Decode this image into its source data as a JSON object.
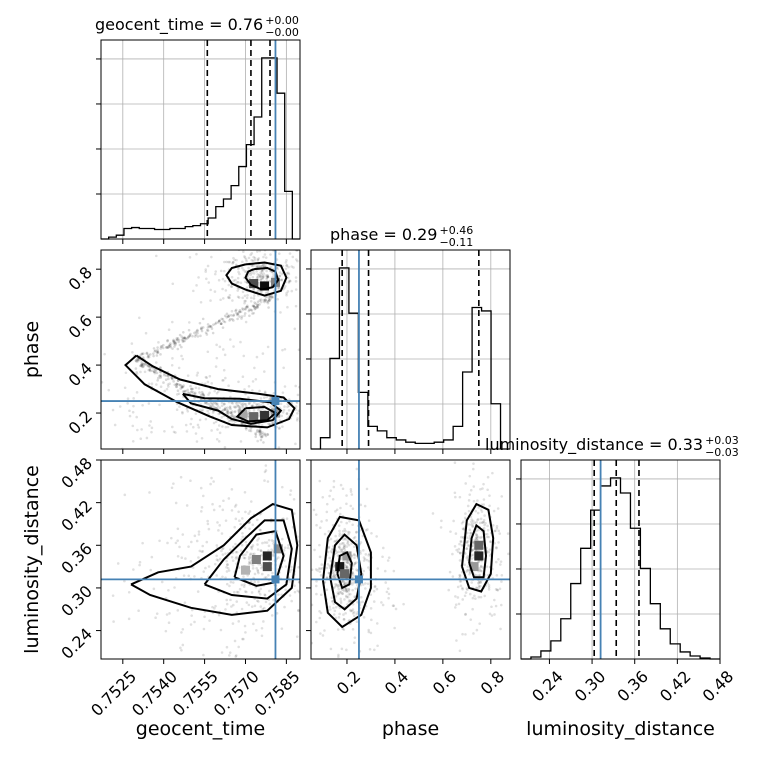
{
  "chart_data": {
    "type": "corner",
    "parameters": [
      {
        "name": "geocent_time",
        "xlabel": "geocent_time",
        "title_text": "geocent_time = 0.76",
        "title_plus": "+0.00",
        "title_minus": "−0.00",
        "range": [
          0.7517,
          0.759
        ],
        "ticks": [
          0.7525,
          0.754,
          0.7555,
          0.757,
          0.7585
        ],
        "tick_labels": [
          "0.7525",
          "0.7540",
          "0.7555",
          "0.7570",
          "0.7585"
        ],
        "truth": 0.7581,
        "quantiles": [
          0.7556,
          0.7572,
          0.7579
        ],
        "hist_edges_range": [
          0.7517,
          0.759
        ],
        "hist_counts": [
          0,
          2,
          4,
          11,
          12,
          11,
          11,
          10,
          10,
          11,
          11,
          13,
          14,
          16,
          22,
          34,
          42,
          56,
          76,
          99,
          128,
          190,
          190,
          153,
          50,
          0
        ]
      },
      {
        "name": "phase",
        "xlabel": "phase",
        "ylabel": "phase",
        "title_text": "phase = 0.29",
        "title_plus": "+0.46",
        "title_minus": "−0.11",
        "range": [
          0.05,
          0.88
        ],
        "ticks": [
          0.2,
          0.4,
          0.6,
          0.8
        ],
        "tick_labels": [
          "0.2",
          "0.4",
          "0.6",
          "0.8"
        ],
        "truth": 0.25,
        "quantiles": [
          0.18,
          0.29,
          0.75
        ],
        "hist_counts": [
          0,
          10,
          80,
          160,
          120,
          50,
          20,
          16,
          10,
          8,
          6,
          5,
          5,
          6,
          8,
          20,
          68,
          125,
          122,
          40,
          0
        ]
      },
      {
        "name": "luminosity_distance",
        "xlabel": "luminosity_distance",
        "ylabel": "luminosity_distance",
        "title_text": "luminosity_distance = 0.33",
        "title_plus": "+0.03",
        "title_minus": "−0.03",
        "range": [
          0.2,
          0.48
        ],
        "ticks": [
          0.24,
          0.3,
          0.36,
          0.42,
          0.48
        ],
        "tick_labels": [
          "0.24",
          "0.30",
          "0.36",
          "0.42",
          "0.48"
        ],
        "truth": 0.312,
        "quantiles": [
          0.303,
          0.334,
          0.366
        ],
        "hist_counts": [
          0,
          2,
          8,
          18,
          40,
          75,
          110,
          148,
          172,
          180,
          165,
          130,
          90,
          55,
          30,
          15,
          7,
          3,
          1,
          0
        ]
      }
    ],
    "pairs": [
      {
        "x": "geocent_time",
        "y": "phase",
        "contour_polylines": [
          [
            [
              0.757,
              0.82
            ],
            [
              0.7577,
              0.828
            ],
            [
              0.7583,
              0.815
            ],
            [
              0.7585,
              0.765
            ],
            [
              0.7583,
              0.71
            ],
            [
              0.7577,
              0.69
            ],
            [
              0.757,
              0.715
            ],
            [
              0.7565,
              0.74
            ],
            [
              0.7563,
              0.775
            ],
            [
              0.7565,
              0.805
            ],
            [
              0.757,
              0.82
            ]
          ],
          [
            [
              0.7573,
              0.8
            ],
            [
              0.7578,
              0.805
            ],
            [
              0.7581,
              0.79
            ],
            [
              0.7582,
              0.755
            ],
            [
              0.758,
              0.725
            ],
            [
              0.7576,
              0.715
            ],
            [
              0.7572,
              0.735
            ],
            [
              0.757,
              0.765
            ],
            [
              0.7571,
              0.79
            ],
            [
              0.7573,
              0.8
            ]
          ],
          [
            [
              0.753,
              0.44
            ],
            [
              0.7536,
              0.395
            ],
            [
              0.7546,
              0.34
            ],
            [
              0.756,
              0.3
            ],
            [
              0.7575,
              0.28
            ],
            [
              0.7584,
              0.265
            ],
            [
              0.7588,
              0.22
            ],
            [
              0.7586,
              0.175
            ],
            [
              0.7578,
              0.14
            ],
            [
              0.7565,
              0.15
            ],
            [
              0.7557,
              0.185
            ],
            [
              0.7545,
              0.245
            ],
            [
              0.7533,
              0.32
            ],
            [
              0.7526,
              0.4
            ],
            [
              0.753,
              0.44
            ]
          ],
          [
            [
              0.7547,
              0.28
            ],
            [
              0.7555,
              0.262
            ],
            [
              0.7568,
              0.26
            ],
            [
              0.7579,
              0.245
            ],
            [
              0.7583,
              0.21
            ],
            [
              0.758,
              0.17
            ],
            [
              0.7572,
              0.155
            ],
            [
              0.7565,
              0.175
            ],
            [
              0.756,
              0.21
            ],
            [
              0.755,
              0.24
            ],
            [
              0.7547,
              0.28
            ]
          ],
          [
            [
              0.757,
              0.22
            ],
            [
              0.7577,
              0.225
            ],
            [
              0.7581,
              0.2
            ],
            [
              0.7578,
              0.17
            ],
            [
              0.7571,
              0.165
            ],
            [
              0.7567,
              0.185
            ],
            [
              0.757,
              0.22
            ]
          ]
        ],
        "dense_cells": [
          [
            0.7577,
            0.73,
            0.95
          ],
          [
            0.7573,
            0.74,
            0.7
          ],
          [
            0.7581,
            0.745,
            0.5
          ],
          [
            0.7577,
            0.19,
            0.8
          ],
          [
            0.7573,
            0.185,
            0.6
          ],
          [
            0.7581,
            0.2,
            0.4
          ],
          [
            0.7569,
            0.195,
            0.35
          ]
        ]
      },
      {
        "x": "geocent_time",
        "y": "luminosity_distance",
        "contour_polylines": [
          [
            [
              0.7528,
              0.305
            ],
            [
              0.7535,
              0.29
            ],
            [
              0.755,
              0.272
            ],
            [
              0.7565,
              0.262
            ],
            [
              0.7578,
              0.268
            ],
            [
              0.7587,
              0.3
            ],
            [
              0.7589,
              0.36
            ],
            [
              0.7587,
              0.41
            ],
            [
              0.758,
              0.418
            ],
            [
              0.7572,
              0.398
            ],
            [
              0.7562,
              0.36
            ],
            [
              0.755,
              0.33
            ],
            [
              0.7538,
              0.322
            ],
            [
              0.7528,
              0.305
            ]
          ],
          [
            [
              0.7555,
              0.305
            ],
            [
              0.7565,
              0.29
            ],
            [
              0.7578,
              0.285
            ],
            [
              0.7585,
              0.305
            ],
            [
              0.7587,
              0.355
            ],
            [
              0.7584,
              0.395
            ],
            [
              0.7577,
              0.395
            ],
            [
              0.757,
              0.37
            ],
            [
              0.7562,
              0.34
            ],
            [
              0.7555,
              0.305
            ]
          ],
          [
            [
              0.7566,
              0.315
            ],
            [
              0.7574,
              0.303
            ],
            [
              0.7581,
              0.308
            ],
            [
              0.7584,
              0.345
            ],
            [
              0.7581,
              0.38
            ],
            [
              0.7574,
              0.375
            ],
            [
              0.7568,
              0.345
            ],
            [
              0.7566,
              0.315
            ]
          ]
        ],
        "dense_cells": [
          [
            0.7578,
            0.345,
            0.85
          ],
          [
            0.7578,
            0.33,
            0.7
          ],
          [
            0.7574,
            0.34,
            0.5
          ],
          [
            0.7582,
            0.355,
            0.45
          ],
          [
            0.757,
            0.325,
            0.3
          ]
        ]
      },
      {
        "x": "phase",
        "y": "luminosity_distance",
        "contour_polylines": [
          [
            [
              0.1,
              0.31
            ],
            [
              0.12,
              0.265
            ],
            [
              0.18,
              0.245
            ],
            [
              0.26,
              0.262
            ],
            [
              0.3,
              0.3
            ],
            [
              0.3,
              0.35
            ],
            [
              0.25,
              0.395
            ],
            [
              0.17,
              0.4
            ],
            [
              0.12,
              0.37
            ],
            [
              0.1,
              0.31
            ]
          ],
          [
            [
              0.13,
              0.315
            ],
            [
              0.15,
              0.28
            ],
            [
              0.19,
              0.27
            ],
            [
              0.24,
              0.285
            ],
            [
              0.26,
              0.32
            ],
            [
              0.24,
              0.36
            ],
            [
              0.19,
              0.375
            ],
            [
              0.15,
              0.36
            ],
            [
              0.13,
              0.315
            ]
          ],
          [
            [
              0.16,
              0.32
            ],
            [
              0.18,
              0.3
            ],
            [
              0.21,
              0.305
            ],
            [
              0.22,
              0.335
            ],
            [
              0.2,
              0.35
            ],
            [
              0.17,
              0.345
            ],
            [
              0.16,
              0.32
            ]
          ],
          [
            [
              0.68,
              0.33
            ],
            [
              0.71,
              0.3
            ],
            [
              0.76,
              0.295
            ],
            [
              0.8,
              0.32
            ],
            [
              0.81,
              0.37
            ],
            [
              0.79,
              0.41
            ],
            [
              0.74,
              0.418
            ],
            [
              0.7,
              0.395
            ],
            [
              0.68,
              0.33
            ]
          ],
          [
            [
              0.71,
              0.335
            ],
            [
              0.73,
              0.315
            ],
            [
              0.77,
              0.315
            ],
            [
              0.78,
              0.345
            ],
            [
              0.77,
              0.38
            ],
            [
              0.74,
              0.388
            ],
            [
              0.72,
              0.37
            ],
            [
              0.71,
              0.335
            ]
          ]
        ],
        "dense_cells": [
          [
            0.17,
            0.33,
            0.9
          ],
          [
            0.19,
            0.32,
            0.6
          ],
          [
            0.2,
            0.345,
            0.4
          ],
          [
            0.75,
            0.345,
            0.85
          ],
          [
            0.75,
            0.36,
            0.6
          ],
          [
            0.73,
            0.33,
            0.4
          ]
        ]
      }
    ]
  }
}
